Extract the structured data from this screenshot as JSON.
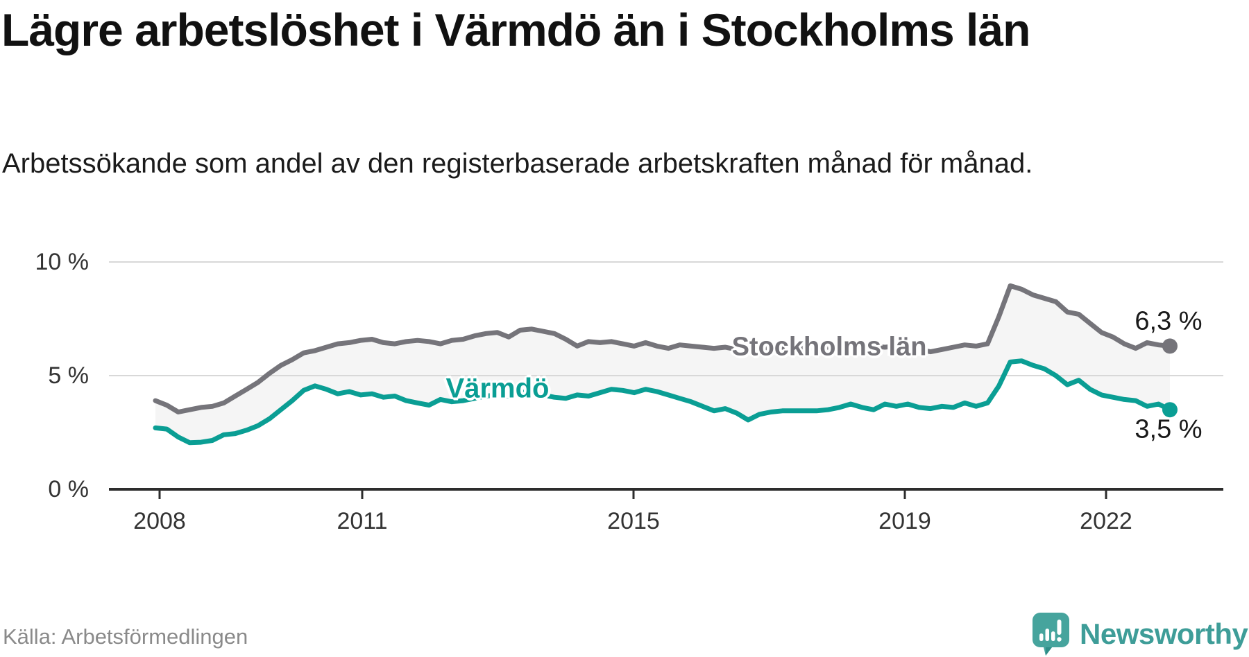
{
  "header": {
    "title": "Lägre arbetslöshet i Värmdö än i Stockholms län",
    "subtitle": "Arbetssökande som andel av den registerbaserade arbetskraften månad för månad."
  },
  "footer": {
    "source": "Källa: Arbetsförmedlingen",
    "brand": "Newsworthy",
    "brand_color": "#3e9d98",
    "logo_icon": "speech-bubble-bar-chart"
  },
  "chart_data": {
    "type": "line",
    "title": "Lägre arbetslöshet i Värmdö än i Stockholms län",
    "subtitle": "Arbetssökande som andel av den registerbaserade arbetskraften månad för månad.",
    "source": "Källa: Arbetsförmedlingen",
    "unit": "percent of registered labour force",
    "grid": "horizontal",
    "legend_position": "inline-labels-on-lines",
    "x_start_year": 2008,
    "points_per_year": 6,
    "x_end_label_period": "late 2022",
    "x_axis_ticks": [
      "2008",
      "2011",
      "2015",
      "2019",
      "2022"
    ],
    "x_tick_years": [
      2008,
      2011,
      2015,
      2019,
      2022
    ],
    "y_axis_ticks": [
      "10 %",
      "5 %",
      "0 %"
    ],
    "y_tick_values": [
      10,
      5,
      0
    ],
    "ylim": [
      0,
      10.5
    ],
    "fill_between_color": "#f5f5f5",
    "gridline_color": "#d8d8d8",
    "axis_color": "#2d2d2d",
    "series": [
      {
        "name": "Stockholms län",
        "color": "#75747a",
        "end_label": "6,3 %",
        "last_value": 6.3,
        "values": [
          3.9,
          3.7,
          3.4,
          3.5,
          3.6,
          3.65,
          3.8,
          4.1,
          4.4,
          4.7,
          5.1,
          5.45,
          5.7,
          6.0,
          6.1,
          6.25,
          6.4,
          6.45,
          6.55,
          6.6,
          6.45,
          6.4,
          6.5,
          6.55,
          6.5,
          6.4,
          6.55,
          6.6,
          6.75,
          6.85,
          6.9,
          6.7,
          7.0,
          7.05,
          6.95,
          6.85,
          6.6,
          6.3,
          6.5,
          6.45,
          6.5,
          6.4,
          6.3,
          6.45,
          6.3,
          6.2,
          6.35,
          6.3,
          6.25,
          6.2,
          6.25,
          6.15,
          6.2,
          6.25,
          6.2,
          6.25,
          6.2,
          6.25,
          6.2,
          6.25,
          6.25,
          6.2,
          6.25,
          6.3,
          6.25,
          6.3,
          6.25,
          6.15,
          6.05,
          6.15,
          6.25,
          6.35,
          6.3,
          6.4,
          7.6,
          8.95,
          8.8,
          8.55,
          8.4,
          8.25,
          7.8,
          7.7,
          7.3,
          6.9,
          6.7,
          6.4,
          6.2,
          6.45,
          6.35,
          6.3
        ]
      },
      {
        "name": "Värmdö",
        "color": "#0a9e94",
        "end_label": "3,5 %",
        "last_value": 3.5,
        "values": [
          2.7,
          2.65,
          2.3,
          2.05,
          2.07,
          2.15,
          2.4,
          2.45,
          2.6,
          2.8,
          3.1,
          3.5,
          3.9,
          4.35,
          4.55,
          4.4,
          4.2,
          4.3,
          4.15,
          4.2,
          4.05,
          4.1,
          3.9,
          3.8,
          3.7,
          3.95,
          3.85,
          3.9,
          4.0,
          4.1,
          4.15,
          4.1,
          4.3,
          4.2,
          4.15,
          4.05,
          4.0,
          4.15,
          4.1,
          4.25,
          4.4,
          4.35,
          4.25,
          4.4,
          4.3,
          4.15,
          4.0,
          3.85,
          3.65,
          3.45,
          3.55,
          3.35,
          3.05,
          3.3,
          3.4,
          3.45,
          3.45,
          3.45,
          3.45,
          3.5,
          3.6,
          3.75,
          3.6,
          3.5,
          3.75,
          3.65,
          3.75,
          3.6,
          3.55,
          3.65,
          3.6,
          3.8,
          3.65,
          3.8,
          4.55,
          5.6,
          5.65,
          5.45,
          5.3,
          5.0,
          4.6,
          4.8,
          4.4,
          4.15,
          4.05,
          3.95,
          3.9,
          3.65,
          3.75,
          3.5
        ]
      }
    ]
  }
}
